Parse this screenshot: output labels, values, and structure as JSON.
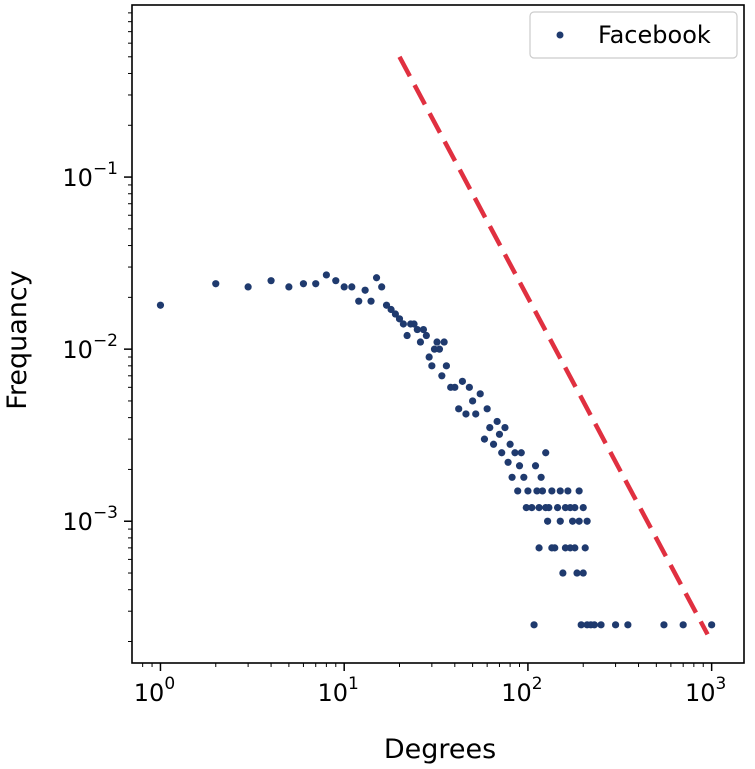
{
  "chart_data": {
    "type": "scatter",
    "xlabel": "Degrees",
    "ylabel": "Frequancy",
    "x_scale": "log",
    "y_scale": "log",
    "xlim": [
      0.7,
      1500
    ],
    "ylim": [
      0.00015,
      1.0
    ],
    "x_ticks": [
      {
        "value": 1,
        "base": "10",
        "exp": "0"
      },
      {
        "value": 10,
        "base": "10",
        "exp": "1"
      },
      {
        "value": 100,
        "base": "10",
        "exp": "2"
      },
      {
        "value": 1000,
        "base": "10",
        "exp": "3"
      }
    ],
    "y_ticks": [
      {
        "value": 0.001,
        "base": "10",
        "exp": "−3"
      },
      {
        "value": 0.01,
        "base": "10",
        "exp": "−2"
      },
      {
        "value": 0.1,
        "base": "10",
        "exp": "−1"
      }
    ],
    "grid": false,
    "legend": {
      "position": "top-right",
      "entries": [
        {
          "label": "Facebook",
          "marker": "dot",
          "color": "#1f3a6e"
        }
      ]
    },
    "series": [
      {
        "name": "Facebook",
        "style": "points",
        "color": "#1f3a6e",
        "points": [
          [
            1,
            0.018
          ],
          [
            2,
            0.024
          ],
          [
            3,
            0.023
          ],
          [
            4,
            0.025
          ],
          [
            5,
            0.023
          ],
          [
            6,
            0.024
          ],
          [
            7,
            0.024
          ],
          [
            8,
            0.027
          ],
          [
            9,
            0.025
          ],
          [
            10,
            0.023
          ],
          [
            11,
            0.023
          ],
          [
            12,
            0.019
          ],
          [
            13,
            0.022
          ],
          [
            14,
            0.019
          ],
          [
            15,
            0.026
          ],
          [
            16,
            0.023
          ],
          [
            17,
            0.018
          ],
          [
            18,
            0.017
          ],
          [
            19,
            0.016
          ],
          [
            20,
            0.015
          ],
          [
            21,
            0.014
          ],
          [
            22,
            0.012
          ],
          [
            23,
            0.014
          ],
          [
            24,
            0.014
          ],
          [
            25,
            0.013
          ],
          [
            26,
            0.011
          ],
          [
            27,
            0.013
          ],
          [
            28,
            0.012
          ],
          [
            29,
            0.009
          ],
          [
            30,
            0.008
          ],
          [
            31,
            0.01
          ],
          [
            32,
            0.011
          ],
          [
            33,
            0.01
          ],
          [
            34,
            0.007
          ],
          [
            35,
            0.011
          ],
          [
            36,
            0.008
          ],
          [
            38,
            0.006
          ],
          [
            40,
            0.006
          ],
          [
            42,
            0.0045
          ],
          [
            44,
            0.0065
          ],
          [
            46,
            0.0042
          ],
          [
            48,
            0.006
          ],
          [
            50,
            0.005
          ],
          [
            52,
            0.0042
          ],
          [
            55,
            0.0055
          ],
          [
            58,
            0.003
          ],
          [
            60,
            0.0045
          ],
          [
            62,
            0.0035
          ],
          [
            65,
            0.0028
          ],
          [
            68,
            0.0038
          ],
          [
            70,
            0.0032
          ],
          [
            72,
            0.0025
          ],
          [
            75,
            0.0035
          ],
          [
            78,
            0.0022
          ],
          [
            80,
            0.0028
          ],
          [
            82,
            0.0018
          ],
          [
            85,
            0.0025
          ],
          [
            88,
            0.0015
          ],
          [
            90,
            0.0021
          ],
          [
            92,
            0.0025
          ],
          [
            95,
            0.0018
          ],
          [
            98,
            0.0012
          ],
          [
            100,
            0.0015
          ],
          [
            105,
            0.0012
          ],
          [
            108,
            0.00025
          ],
          [
            110,
            0.0021
          ],
          [
            112,
            0.0015
          ],
          [
            115,
            0.0012
          ],
          [
            118,
            0.0018
          ],
          [
            120,
            0.0015
          ],
          [
            125,
            0.0025
          ],
          [
            128,
            0.001
          ],
          [
            130,
            0.0012
          ],
          [
            135,
            0.0015
          ],
          [
            140,
            0.0007
          ],
          [
            145,
            0.0012
          ],
          [
            150,
            0.001
          ],
          [
            155,
            0.0005
          ],
          [
            160,
            0.0012
          ],
          [
            165,
            0.0015
          ],
          [
            170,
            0.0007
          ],
          [
            175,
            0.001
          ],
          [
            180,
            0.0012
          ],
          [
            185,
            0.0005
          ],
          [
            190,
            0.0015
          ],
          [
            195,
            0.00025
          ],
          [
            200,
            0.0012
          ],
          [
            205,
            0.0007
          ],
          [
            210,
            0.00025
          ],
          [
            220,
            0.00025
          ],
          [
            230,
            0.00025
          ],
          [
            250,
            0.00025
          ],
          [
            300,
            0.00025
          ],
          [
            350,
            0.00025
          ],
          [
            550,
            0.00025
          ],
          [
            700,
            0.00025
          ],
          [
            1000,
            0.00025
          ],
          [
            115,
            0.0007
          ],
          [
            125,
            0.0012
          ],
          [
            135,
            0.0007
          ],
          [
            150,
            0.0015
          ],
          [
            160,
            0.0007
          ],
          [
            170,
            0.0012
          ],
          [
            180,
            0.0007
          ],
          [
            190,
            0.001
          ],
          [
            200,
            0.0005
          ],
          [
            210,
            0.001
          ]
        ]
      },
      {
        "name": "",
        "style": "dashed-line",
        "color": "#e03040",
        "points": [
          [
            20,
            0.5
          ],
          [
            950,
            0.00022
          ]
        ]
      }
    ]
  }
}
